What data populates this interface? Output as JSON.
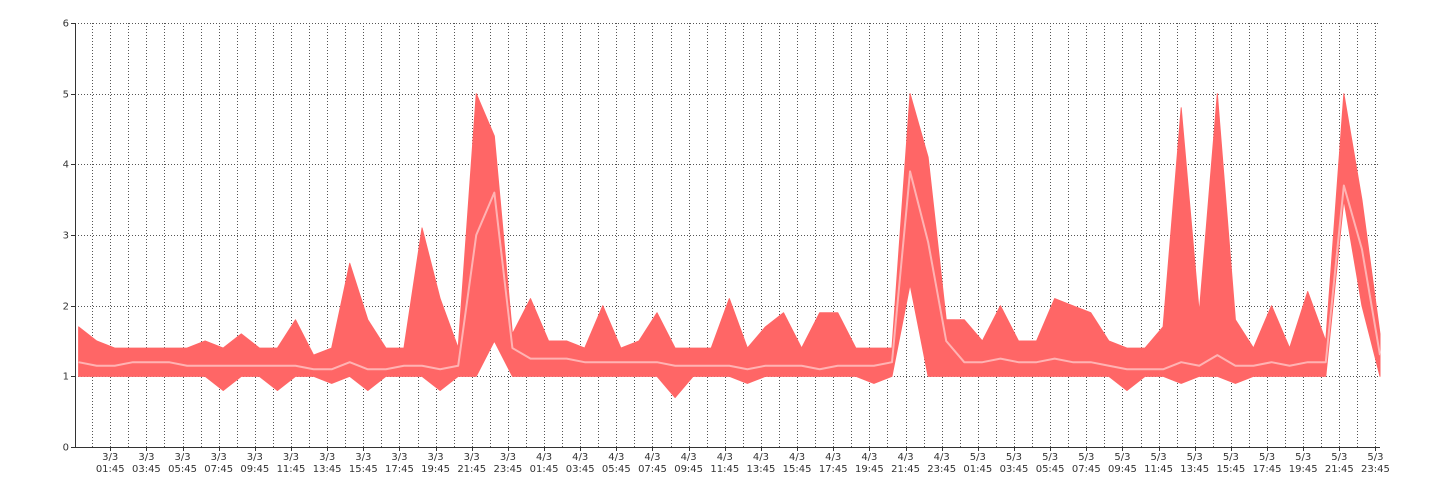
{
  "chart_data": {
    "type": "range-area",
    "x": [
      0,
      1,
      2,
      3,
      4,
      5,
      6,
      7,
      8,
      9,
      10,
      11,
      12,
      13,
      14,
      15,
      16,
      17,
      18,
      19,
      20,
      21,
      22,
      23,
      24,
      25,
      26,
      27,
      28,
      29,
      30,
      31,
      32,
      33,
      34,
      35,
      36,
      37,
      38,
      39,
      40,
      41,
      42,
      43,
      44,
      45,
      46,
      47,
      48,
      49,
      50,
      51,
      52,
      53,
      54,
      55,
      56,
      57,
      58,
      59,
      60,
      61,
      62,
      63,
      64,
      65,
      66,
      67,
      68,
      69,
      70,
      71,
      72
    ],
    "series": [
      {
        "color": "#ff6666",
        "values": [
          1.7,
          1.5,
          1.4,
          1.4,
          1.4,
          1.4,
          1.4,
          1.5,
          1.4,
          1.6,
          1.4,
          1.4,
          1.8,
          1.3,
          1.4,
          2.6,
          1.8,
          1.4,
          1.4,
          3.1,
          2.1,
          1.4,
          5.0,
          4.4,
          1.6,
          2.1,
          1.5,
          1.5,
          1.4,
          2.0,
          1.4,
          1.5,
          1.9,
          1.4,
          1.4,
          1.4,
          2.1,
          1.4,
          1.7,
          1.9,
          1.4,
          1.9,
          1.9,
          1.4,
          1.4,
          1.4,
          5.0,
          4.1,
          1.8,
          1.8,
          1.5,
          2.0,
          1.5,
          1.5,
          2.1,
          2.0,
          1.9,
          1.5,
          1.4,
          1.4,
          1.7,
          4.8,
          1.9,
          5.0,
          1.8,
          1.4,
          2.0,
          1.4,
          2.2,
          1.5,
          5.0,
          3.5,
          1.6
        ]
      },
      {
        "color": "#ff6666",
        "values": [
          1.0,
          1.0,
          1.0,
          1.0,
          1.0,
          1.0,
          1.0,
          1.0,
          0.8,
          1.0,
          1.0,
          0.8,
          1.0,
          1.0,
          0.9,
          1.0,
          0.8,
          1.0,
          1.0,
          1.0,
          0.8,
          1.0,
          1.0,
          1.5,
          1.0,
          1.0,
          1.0,
          1.0,
          1.0,
          1.0,
          1.0,
          1.0,
          1.0,
          0.7,
          1.0,
          1.0,
          1.0,
          0.9,
          1.0,
          1.0,
          1.0,
          1.0,
          1.0,
          1.0,
          0.9,
          1.0,
          2.3,
          1.0,
          1.0,
          1.0,
          1.0,
          1.0,
          1.0,
          1.0,
          1.0,
          1.0,
          1.0,
          1.0,
          0.8,
          1.0,
          1.0,
          0.9,
          1.0,
          1.0,
          0.9,
          1.0,
          1.0,
          1.0,
          1.0,
          1.0,
          3.5,
          2.0,
          1.0
        ]
      },
      {
        "color": "#ffb3b3",
        "values": [
          1.2,
          1.15,
          1.15,
          1.2,
          1.2,
          1.2,
          1.15,
          1.15,
          1.15,
          1.15,
          1.15,
          1.15,
          1.15,
          1.1,
          1.1,
          1.2,
          1.1,
          1.1,
          1.15,
          1.15,
          1.1,
          1.15,
          3.0,
          3.6,
          1.4,
          1.25,
          1.25,
          1.25,
          1.2,
          1.2,
          1.2,
          1.2,
          1.2,
          1.15,
          1.15,
          1.15,
          1.15,
          1.1,
          1.15,
          1.15,
          1.15,
          1.1,
          1.15,
          1.15,
          1.15,
          1.2,
          3.9,
          2.9,
          1.5,
          1.2,
          1.2,
          1.25,
          1.2,
          1.2,
          1.25,
          1.2,
          1.2,
          1.15,
          1.1,
          1.1,
          1.1,
          1.2,
          1.15,
          1.3,
          1.15,
          1.15,
          1.2,
          1.15,
          1.2,
          1.2,
          3.7,
          2.8,
          1.3
        ]
      }
    ],
    "xlim": [
      -0.2,
      72
    ],
    "xticks": [
      {
        "value": 1.75,
        "label": "3/3\n01:45"
      },
      {
        "value": 3.75,
        "label": "3/3\n03:45"
      },
      {
        "value": 5.75,
        "label": "3/3\n05:45"
      },
      {
        "value": 7.75,
        "label": "3/3\n07:45"
      },
      {
        "value": 9.75,
        "label": "3/3\n09:45"
      },
      {
        "value": 11.75,
        "label": "3/3\n11:45"
      },
      {
        "value": 13.75,
        "label": "3/3\n13:45"
      },
      {
        "value": 15.75,
        "label": "3/3\n15:45"
      },
      {
        "value": 17.75,
        "label": "3/3\n17:45"
      },
      {
        "value": 19.75,
        "label": "3/3\n19:45"
      },
      {
        "value": 21.75,
        "label": "3/3\n21:45"
      },
      {
        "value": 23.75,
        "label": "3/3\n23:45"
      },
      {
        "value": 25.75,
        "label": "4/3\n01:45"
      },
      {
        "value": 27.75,
        "label": "4/3\n03:45"
      },
      {
        "value": 29.75,
        "label": "4/3\n05:45"
      },
      {
        "value": 31.75,
        "label": "4/3\n07:45"
      },
      {
        "value": 33.75,
        "label": "4/3\n09:45"
      },
      {
        "value": 35.75,
        "label": "4/3\n11:45"
      },
      {
        "value": 37.75,
        "label": "4/3\n13:45"
      },
      {
        "value": 39.75,
        "label": "4/3\n15:45"
      },
      {
        "value": 41.75,
        "label": "4/3\n17:45"
      },
      {
        "value": 43.75,
        "label": "4/3\n19:45"
      },
      {
        "value": 45.75,
        "label": "4/3\n21:45"
      },
      {
        "value": 47.75,
        "label": "4/3\n23:45"
      },
      {
        "value": 49.75,
        "label": "5/3\n01:45"
      },
      {
        "value": 51.75,
        "label": "5/3\n03:45"
      },
      {
        "value": 53.75,
        "label": "5/3\n05:45"
      },
      {
        "value": 55.75,
        "label": "5/3\n07:45"
      },
      {
        "value": 57.75,
        "label": "5/3\n09:45"
      },
      {
        "value": 59.75,
        "label": "5/3\n11:45"
      },
      {
        "value": 61.75,
        "label": "5/3\n13:45"
      },
      {
        "value": 63.75,
        "label": "5/3\n15:45"
      },
      {
        "value": 65.75,
        "label": "5/3\n17:45"
      },
      {
        "value": 67.75,
        "label": "5/3\n19:45"
      },
      {
        "value": 69.75,
        "label": "5/3\n21:45"
      },
      {
        "value": 71.75,
        "label": "5/3\n23:45"
      }
    ],
    "xminorticks": [
      0.75,
      2.75,
      4.75,
      6.75,
      8.75,
      10.75,
      12.75,
      14.75,
      16.75,
      18.75,
      20.75,
      22.75,
      24.75,
      26.75,
      28.75,
      30.75,
      32.75,
      34.75,
      36.75,
      38.75,
      40.75,
      42.75,
      44.75,
      46.75,
      48.75,
      50.75,
      52.75,
      54.75,
      56.75,
      58.75,
      60.75,
      62.75,
      64.75,
      66.75,
      68.75,
      70.75
    ],
    "ylim": [
      0,
      6
    ],
    "yticks": [
      0,
      1,
      2,
      3,
      4,
      5,
      6
    ],
    "grid": true
  }
}
